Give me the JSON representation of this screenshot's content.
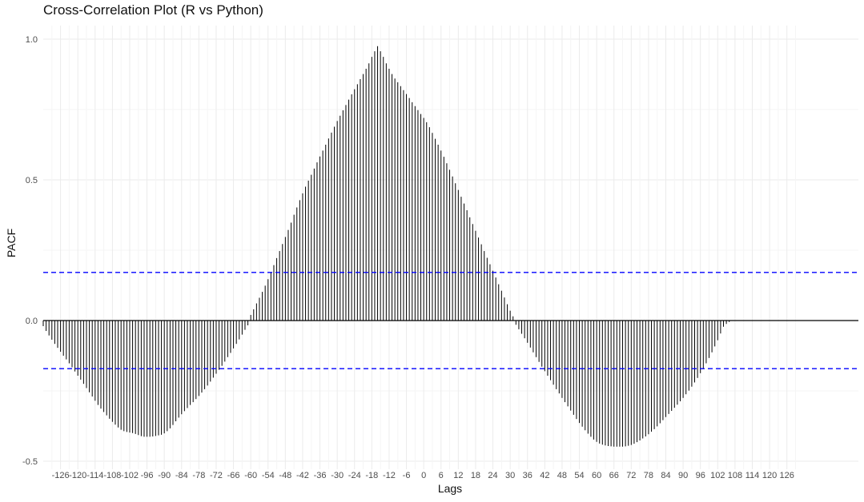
{
  "chart_data": {
    "type": "bar",
    "title": "Cross-Correlation Plot (R vs Python)",
    "xlabel": "Lags",
    "ylabel": "PACF",
    "xlim": [
      -132,
      132
    ],
    "ylim": [
      -0.5,
      1.0
    ],
    "yticks": [
      -0.5,
      0.0,
      0.5,
      1.0
    ],
    "ytick_labels": [
      "-0.5",
      "0.0",
      "0.5",
      "1.0"
    ],
    "xticks": [
      -126,
      -120,
      -114,
      -108,
      -102,
      -96,
      -90,
      -84,
      -78,
      -72,
      -66,
      -60,
      -54,
      -48,
      -42,
      -36,
      -30,
      -24,
      -18,
      -12,
      -6,
      0,
      6,
      12,
      18,
      24,
      30,
      36,
      42,
      48,
      54,
      60,
      66,
      72,
      78,
      84,
      90,
      96,
      102,
      108,
      114,
      120,
      126
    ],
    "xtick_labels": [
      "-126",
      "-120",
      "-114",
      "-108",
      "-102",
      "-96",
      "-90",
      "-84",
      "-78",
      "-72",
      "-66",
      "-60",
      "-54",
      "-48",
      "-42",
      "-36",
      "-30",
      "-24",
      "-18",
      "-12",
      "-6",
      "0",
      "6",
      "12",
      "18",
      "24",
      "30",
      "36",
      "42",
      "48",
      "54",
      "60",
      "66",
      "72",
      "78",
      "84",
      "90",
      "96",
      "102",
      "108",
      "114",
      "120",
      "126"
    ],
    "lag_range": [
      -132,
      132
    ],
    "confidence_band": 0.171,
    "grid": true,
    "series": [
      {
        "values": [
          -0.02,
          -0.037,
          -0.053,
          -0.068,
          -0.083,
          -0.097,
          -0.111,
          -0.125,
          -0.138,
          -0.152,
          -0.166,
          -0.181,
          -0.196,
          -0.21,
          -0.225,
          -0.24,
          -0.255,
          -0.27,
          -0.285,
          -0.3,
          -0.313,
          -0.325,
          -0.337,
          -0.349,
          -0.36,
          -0.37,
          -0.38,
          -0.388,
          -0.393,
          -0.396,
          -0.398,
          -0.4,
          -0.403,
          -0.407,
          -0.411,
          -0.413,
          -0.413,
          -0.413,
          -0.412,
          -0.41,
          -0.408,
          -0.406,
          -0.401,
          -0.393,
          -0.383,
          -0.371,
          -0.358,
          -0.345,
          -0.333,
          -0.322,
          -0.311,
          -0.3,
          -0.29,
          -0.279,
          -0.268,
          -0.256,
          -0.244,
          -0.231,
          -0.217,
          -0.203,
          -0.189,
          -0.175,
          -0.161,
          -0.146,
          -0.13,
          -0.115,
          -0.099,
          -0.083,
          -0.067,
          -0.05,
          -0.033,
          -0.017,
          0.02,
          0.04,
          0.061,
          0.081,
          0.102,
          0.124,
          0.147,
          0.172,
          0.197,
          0.222,
          0.247,
          0.272,
          0.297,
          0.322,
          0.348,
          0.376,
          0.402,
          0.428,
          0.452,
          0.476,
          0.497,
          0.518,
          0.54,
          0.562,
          0.583,
          0.604,
          0.625,
          0.647,
          0.668,
          0.689,
          0.709,
          0.728,
          0.747,
          0.766,
          0.785,
          0.804,
          0.822,
          0.84,
          0.858,
          0.876,
          0.895,
          0.914,
          0.937,
          0.957,
          0.975,
          0.957,
          0.937,
          0.914,
          0.895,
          0.876,
          0.86,
          0.847,
          0.833,
          0.819,
          0.805,
          0.791,
          0.776,
          0.762,
          0.748,
          0.734,
          0.72,
          0.705,
          0.687,
          0.667,
          0.646,
          0.625,
          0.604,
          0.582,
          0.559,
          0.536,
          0.512,
          0.488,
          0.464,
          0.44,
          0.416,
          0.392,
          0.367,
          0.343,
          0.319,
          0.295,
          0.271,
          0.247,
          0.223,
          0.2,
          0.177,
          0.153,
          0.129,
          0.106,
          0.082,
          0.058,
          0.035,
          0.015,
          -0.015,
          -0.031,
          -0.047,
          -0.063,
          -0.079,
          -0.096,
          -0.113,
          -0.13,
          -0.147,
          -0.164,
          -0.18,
          -0.196,
          -0.212,
          -0.228,
          -0.244,
          -0.259,
          -0.275,
          -0.29,
          -0.305,
          -0.32,
          -0.335,
          -0.35,
          -0.364,
          -0.377,
          -0.39,
          -0.402,
          -0.413,
          -0.423,
          -0.431,
          -0.437,
          -0.441,
          -0.444,
          -0.446,
          -0.447,
          -0.448,
          -0.448,
          -0.448,
          -0.448,
          -0.447,
          -0.445,
          -0.442,
          -0.438,
          -0.432,
          -0.426,
          -0.419,
          -0.412,
          -0.404,
          -0.395,
          -0.386,
          -0.376,
          -0.365,
          -0.354,
          -0.343,
          -0.332,
          -0.321,
          -0.31,
          -0.299,
          -0.287,
          -0.275,
          -0.262,
          -0.249,
          -0.235,
          -0.22,
          -0.204,
          -0.187,
          -0.17,
          -0.152,
          -0.133,
          -0.113,
          -0.092,
          -0.07,
          -0.046,
          -0.022,
          -0.012,
          -0.005
        ]
      }
    ]
  }
}
